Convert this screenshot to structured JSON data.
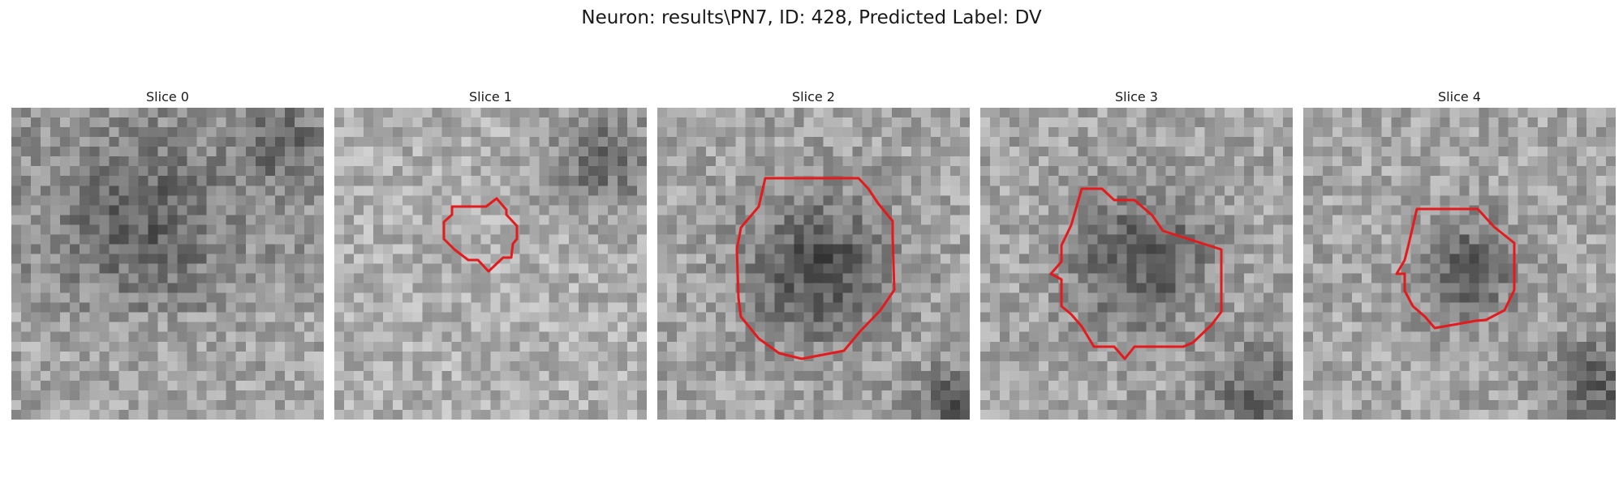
{
  "figure": {
    "title": "Neuron: results\\PN7, ID: 428, Predicted Label: DV"
  },
  "panels": [
    {
      "title": "Slice 0",
      "has_contour": false
    },
    {
      "title": "Slice 1",
      "has_contour": true
    },
    {
      "title": "Slice 2",
      "has_contour": true
    },
    {
      "title": "Slice 3",
      "has_contour": true
    },
    {
      "title": "Slice 4",
      "has_contour": true
    }
  ],
  "colors": {
    "contour": "#e41a1c",
    "text": "#1a1a1a",
    "background": "#ffffff"
  }
}
